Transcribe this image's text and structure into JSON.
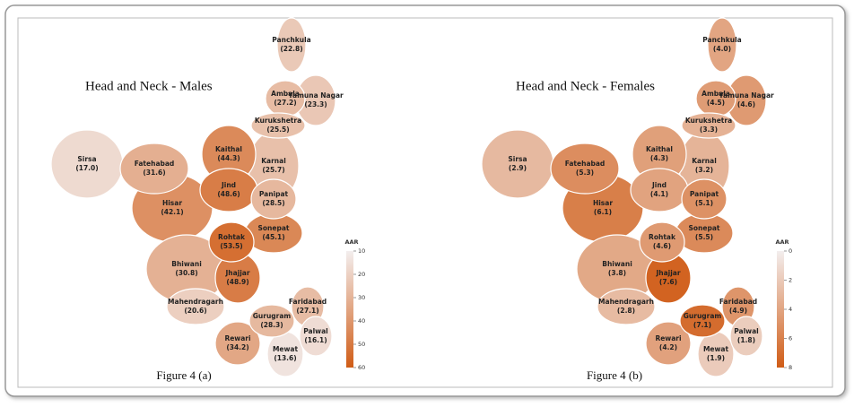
{
  "maps": [
    {
      "title": "Head and Neck - Males",
      "caption": "Figure 4 (a)",
      "legend_label": "AAR",
      "lim": [
        10,
        60
      ],
      "ticks": [
        10,
        20,
        30,
        40,
        50,
        60
      ],
      "color_low": "#f3eeee",
      "color_high": "#d05c16",
      "districts": [
        {
          "name": "Panchkula",
          "value": 22.8,
          "value_label": "(22.8)"
        },
        {
          "name": "Ambala",
          "value": 27.2,
          "value_label": "(27.2)"
        },
        {
          "name": "Yamuna Nagar",
          "value": 23.3,
          "value_label": "(23.3)"
        },
        {
          "name": "Kurukshetra",
          "value": 25.5,
          "value_label": "(25.5)"
        },
        {
          "name": "Sirsa",
          "value": 17.0,
          "value_label": "(17.0)"
        },
        {
          "name": "Fatehabad",
          "value": 31.6,
          "value_label": "(31.6)"
        },
        {
          "name": "Kaithal",
          "value": 44.3,
          "value_label": "(44.3)"
        },
        {
          "name": "Karnal",
          "value": 25.7,
          "value_label": "(25.7)"
        },
        {
          "name": "Jind",
          "value": 48.6,
          "value_label": "(48.6)"
        },
        {
          "name": "Hisar",
          "value": 42.1,
          "value_label": "(42.1)"
        },
        {
          "name": "Panipat",
          "value": 28.5,
          "value_label": "(28.5)"
        },
        {
          "name": "Sonepat",
          "value": 45.1,
          "value_label": "(45.1)"
        },
        {
          "name": "Rohtak",
          "value": 53.5,
          "value_label": "(53.5)"
        },
        {
          "name": "Bhiwani",
          "value": 30.8,
          "value_label": "(30.8)"
        },
        {
          "name": "Jhajjar",
          "value": 48.9,
          "value_label": "(48.9)"
        },
        {
          "name": "Gurugram",
          "value": 28.3,
          "value_label": "(28.3)"
        },
        {
          "name": "Faridabad",
          "value": 27.1,
          "value_label": "(27.1)"
        },
        {
          "name": "Mahendragarh",
          "value": 20.6,
          "value_label": "(20.6)"
        },
        {
          "name": "Rewari",
          "value": 34.2,
          "value_label": "(34.2)"
        },
        {
          "name": "Palwal",
          "value": 16.1,
          "value_label": "(16.1)"
        },
        {
          "name": "Mewat",
          "value": 13.6,
          "value_label": "(13.6)"
        }
      ]
    },
    {
      "title": "Head and Neck - Females",
      "caption": "Figure 4 (b)",
      "legend_label": "AAR",
      "lim": [
        0,
        8
      ],
      "ticks": [
        0,
        2,
        4,
        6,
        8
      ],
      "color_low": "#f3eeee",
      "color_high": "#d05c16",
      "districts": [
        {
          "name": "Panchkula",
          "value": 4.0,
          "value_label": "(4.0)"
        },
        {
          "name": "Ambala",
          "value": 4.5,
          "value_label": "(4.5)"
        },
        {
          "name": "Yamuna Nagar",
          "value": 4.6,
          "value_label": "(4.6)"
        },
        {
          "name": "Kurukshetra",
          "value": 3.3,
          "value_label": "(3.3)"
        },
        {
          "name": "Sirsa",
          "value": 2.9,
          "value_label": "(2.9)"
        },
        {
          "name": "Fatehabad",
          "value": 5.3,
          "value_label": "(5.3)"
        },
        {
          "name": "Kaithal",
          "value": 4.3,
          "value_label": "(4.3)"
        },
        {
          "name": "Karnal",
          "value": 3.2,
          "value_label": "(3.2)"
        },
        {
          "name": "Jind",
          "value": 4.1,
          "value_label": "(4.1)"
        },
        {
          "name": "Hisar",
          "value": 6.1,
          "value_label": "(6.1)"
        },
        {
          "name": "Panipat",
          "value": 5.1,
          "value_label": "(5.1)"
        },
        {
          "name": "Sonepat",
          "value": 5.5,
          "value_label": "(5.5)"
        },
        {
          "name": "Rohtak",
          "value": 4.6,
          "value_label": "(4.6)"
        },
        {
          "name": "Bhiwani",
          "value": 3.8,
          "value_label": "(3.8)"
        },
        {
          "name": "Jhajjar",
          "value": 7.6,
          "value_label": "(7.6)"
        },
        {
          "name": "Gurugram",
          "value": 7.1,
          "value_label": "(7.1)"
        },
        {
          "name": "Faridabad",
          "value": 4.9,
          "value_label": "(4.9)"
        },
        {
          "name": "Mahendragarh",
          "value": 2.8,
          "value_label": "(2.8)"
        },
        {
          "name": "Rewari",
          "value": 4.2,
          "value_label": "(4.2)"
        },
        {
          "name": "Palwal",
          "value": 1.8,
          "value_label": "(1.8)"
        },
        {
          "name": "Mewat",
          "value": 1.9,
          "value_label": "(1.9)"
        }
      ]
    }
  ]
}
